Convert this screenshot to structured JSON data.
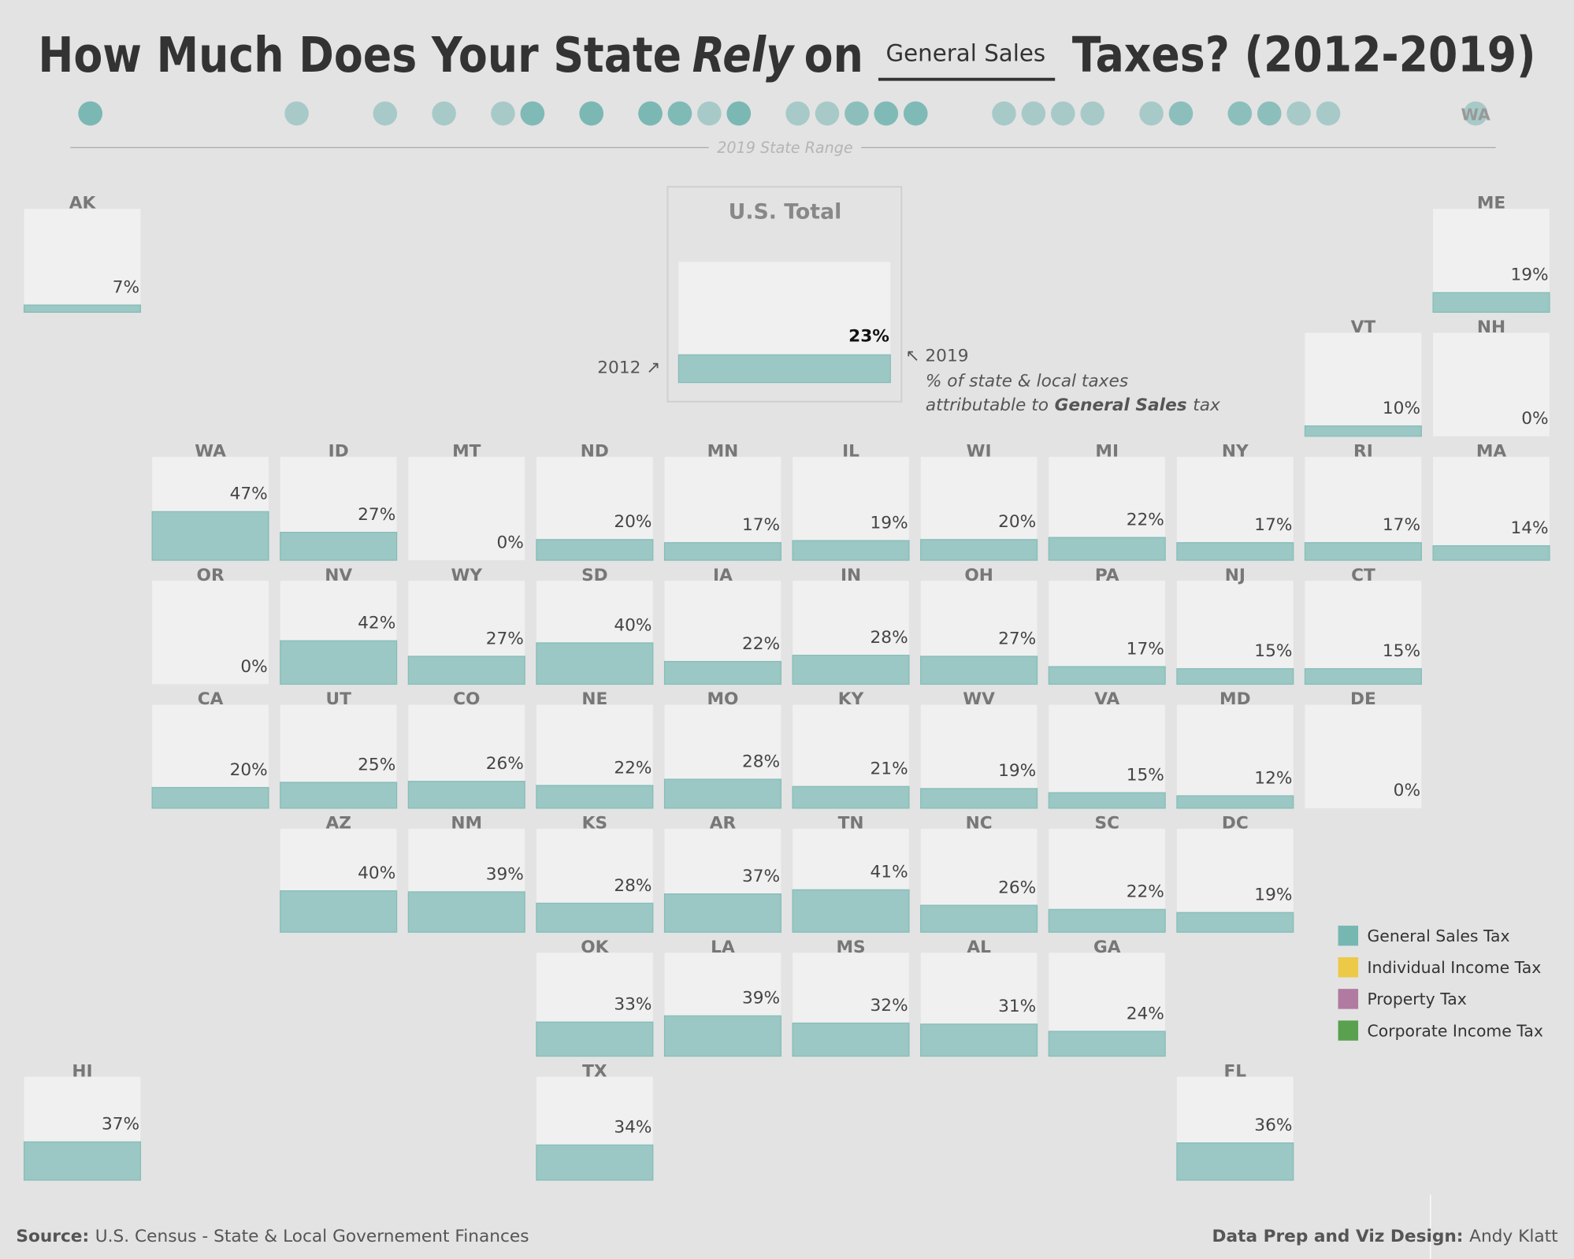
{
  "chart_data": {
    "type": "tile-map",
    "title_parts": [
      "How Much Does Your State",
      "Rely",
      "on",
      "Taxes? (2012-2019)"
    ],
    "measure": "General Sales",
    "range_label": "2019 State Range",
    "xlim": [
      0,
      47
    ],
    "ylim": [
      0,
      100
    ],
    "color": "#9bc7c4",
    "total": {
      "label": "U.S. Total",
      "value": 23,
      "value_label": "23%",
      "start_label": "2012 ↗",
      "end_label": "↖ 2019",
      "note": [
        "% of state & local taxes",
        "attributable to",
        "tax"
      ]
    },
    "states": [
      {
        "abbr": "AK",
        "value": 7,
        "value_label": "7%"
      },
      {
        "abbr": "ME",
        "value": 19,
        "value_label": "19%"
      },
      {
        "abbr": "VT",
        "value": 10,
        "value_label": "10%"
      },
      {
        "abbr": "NH",
        "value": 0,
        "value_label": "0%"
      },
      {
        "abbr": "WA",
        "value": 47,
        "value_label": "47%"
      },
      {
        "abbr": "ID",
        "value": 27,
        "value_label": "27%"
      },
      {
        "abbr": "MT",
        "value": 0,
        "value_label": "0%"
      },
      {
        "abbr": "ND",
        "value": 20,
        "value_label": "20%"
      },
      {
        "abbr": "MN",
        "value": 17,
        "value_label": "17%"
      },
      {
        "abbr": "IL",
        "value": 19,
        "value_label": "19%"
      },
      {
        "abbr": "WI",
        "value": 20,
        "value_label": "20%"
      },
      {
        "abbr": "MI",
        "value": 22,
        "value_label": "22%"
      },
      {
        "abbr": "NY",
        "value": 17,
        "value_label": "17%"
      },
      {
        "abbr": "RI",
        "value": 17,
        "value_label": "17%"
      },
      {
        "abbr": "MA",
        "value": 14,
        "value_label": "14%"
      },
      {
        "abbr": "OR",
        "value": 0,
        "value_label": "0%"
      },
      {
        "abbr": "NV",
        "value": 42,
        "value_label": "42%"
      },
      {
        "abbr": "WY",
        "value": 27,
        "value_label": "27%"
      },
      {
        "abbr": "SD",
        "value": 40,
        "value_label": "40%"
      },
      {
        "abbr": "IA",
        "value": 22,
        "value_label": "22%"
      },
      {
        "abbr": "IN",
        "value": 28,
        "value_label": "28%"
      },
      {
        "abbr": "OH",
        "value": 27,
        "value_label": "27%"
      },
      {
        "abbr": "PA",
        "value": 17,
        "value_label": "17%"
      },
      {
        "abbr": "NJ",
        "value": 15,
        "value_label": "15%"
      },
      {
        "abbr": "CT",
        "value": 15,
        "value_label": "15%"
      },
      {
        "abbr": "CA",
        "value": 20,
        "value_label": "20%"
      },
      {
        "abbr": "UT",
        "value": 25,
        "value_label": "25%"
      },
      {
        "abbr": "CO",
        "value": 26,
        "value_label": "26%"
      },
      {
        "abbr": "NE",
        "value": 22,
        "value_label": "22%"
      },
      {
        "abbr": "MO",
        "value": 28,
        "value_label": "28%"
      },
      {
        "abbr": "KY",
        "value": 21,
        "value_label": "21%"
      },
      {
        "abbr": "WV",
        "value": 19,
        "value_label": "19%"
      },
      {
        "abbr": "VA",
        "value": 15,
        "value_label": "15%"
      },
      {
        "abbr": "MD",
        "value": 12,
        "value_label": "12%"
      },
      {
        "abbr": "DE",
        "value": 0,
        "value_label": "0%"
      },
      {
        "abbr": "AZ",
        "value": 40,
        "value_label": "40%"
      },
      {
        "abbr": "NM",
        "value": 39,
        "value_label": "39%"
      },
      {
        "abbr": "KS",
        "value": 28,
        "value_label": "28%"
      },
      {
        "abbr": "AR",
        "value": 37,
        "value_label": "37%"
      },
      {
        "abbr": "TN",
        "value": 41,
        "value_label": "41%"
      },
      {
        "abbr": "NC",
        "value": 26,
        "value_label": "26%"
      },
      {
        "abbr": "SC",
        "value": 22,
        "value_label": "22%"
      },
      {
        "abbr": "DC",
        "value": 19,
        "value_label": "19%"
      },
      {
        "abbr": "OK",
        "value": 33,
        "value_label": "33%"
      },
      {
        "abbr": "LA",
        "value": 39,
        "value_label": "39%"
      },
      {
        "abbr": "MS",
        "value": 32,
        "value_label": "32%"
      },
      {
        "abbr": "AL",
        "value": 31,
        "value_label": "31%"
      },
      {
        "abbr": "GA",
        "value": 24,
        "value_label": "24%"
      },
      {
        "abbr": "HI",
        "value": 37,
        "value_label": "37%"
      },
      {
        "abbr": "TX",
        "value": 34,
        "value_label": "34%"
      },
      {
        "abbr": "FL",
        "value": 36,
        "value_label": "36%"
      }
    ],
    "legend": [
      {
        "name": "General Sales Tax",
        "color": "#76b7b2"
      },
      {
        "name": "Individual Income Tax",
        "color": "#edc948"
      },
      {
        "name": "Property Tax",
        "color": "#b07aa1"
      },
      {
        "name": "Corporate Income Tax",
        "color": "#59a14f"
      }
    ],
    "source_label": "Source:",
    "source": "U.S. Census - State & Local Governement Finances",
    "credit_label": "Data Prep and Viz Design:",
    "credit": "Andy Klatt"
  }
}
